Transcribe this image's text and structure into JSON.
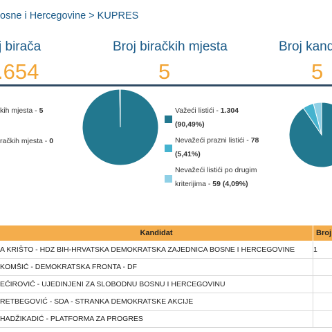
{
  "breadcrumb": "osne i Hercegovine > KUPRES",
  "stats": [
    {
      "label": "j birača",
      "value": ".654"
    },
    {
      "label": "Broj biračkih mjesta",
      "value": "5"
    },
    {
      "label": "Broj kandi",
      "value": "5"
    }
  ],
  "left_info": [
    {
      "label": "kih mjesta - ",
      "value": "5"
    },
    {
      "label": "račkih mjesta - ",
      "value": "0"
    }
  ],
  "legend": [
    {
      "label": "Važeći listići - ",
      "value": "1.304",
      "percent": "(90,49%)",
      "color": "#22788f"
    },
    {
      "label": "Nevažeći prazni listići - ",
      "value": "78",
      "percent": "(5,41%)",
      "color": "#45b3cf"
    },
    {
      "label_line1": "Nevažeći listići po drugim",
      "label_line2": "kriterijima - ",
      "value": "59",
      "percent": "(4,09%)",
      "color": "#8fd0e6"
    }
  ],
  "pie_left": [
    {
      "value": 99.7,
      "color": "#22788f"
    },
    {
      "value": 0.3,
      "color": "#ffffff"
    }
  ],
  "pie_right": [
    {
      "value": 90.49,
      "color": "#22788f"
    },
    {
      "value": 5.41,
      "color": "#45b3cf"
    },
    {
      "value": 4.09,
      "color": "#8fd0e6"
    }
  ],
  "table": {
    "headers": [
      "Kandidat",
      "Broj"
    ],
    "rows": [
      {
        "name": "A KRIŠTO - HDZ BIH-HRVATSKA DEMOKRATSKA ZAJEDNICA BOSNE I HERCEGOVINE",
        "votes": "1"
      },
      {
        "name": "KOMŠIĆ - DEMOKRATSKA FRONTA - DF",
        "votes": ""
      },
      {
        "name": "EĆIROVIĆ - UJEDINJENI ZA SLOBODNU BOSNU I HERCEGOVINU",
        "votes": ""
      },
      {
        "name": "RETBEGOVIĆ - SDA - STRANKA DEMOKRATSKE AKCIJE",
        "votes": ""
      },
      {
        "name": "HADŽIKADIĆ - PLATFORMA ZA PROGRES",
        "votes": ""
      }
    ]
  }
}
